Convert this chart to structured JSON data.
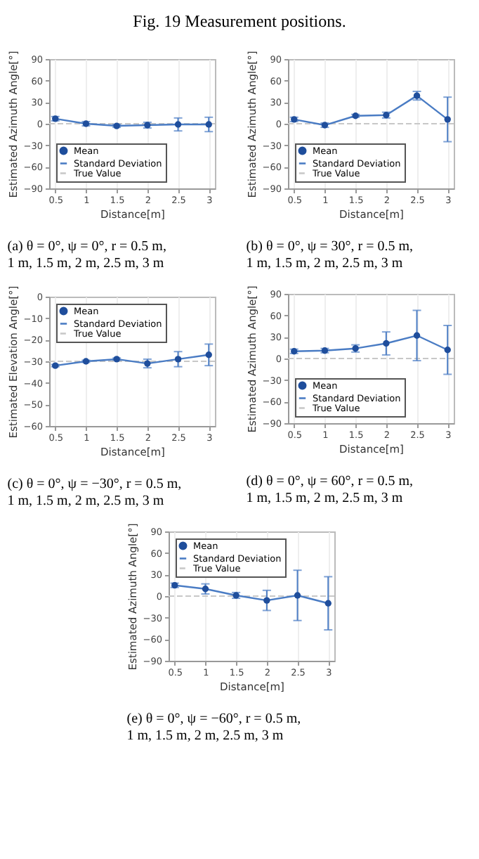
{
  "chart_data": [
    {
      "type": "line",
      "title": "(a) θ = 0°, ψ = 0°, r = 0.5 m, 1 m, 1.5 m, 2 m, 2.5 m, 3 m",
      "annotations": [
        "Fig. 19    Measurement positions."
      ],
      "xlabel": "Distance[m]",
      "ylabel": "Estimated Azimuth Angle[°]",
      "x": [
        0.5,
        1,
        1.5,
        2,
        2.5,
        3
      ],
      "xlim": [
        0.4,
        3.1
      ],
      "xticks": [
        0.5,
        1,
        1.5,
        2,
        2.5,
        3
      ],
      "ylim": [
        -90,
        90
      ],
      "yticks": [
        -90,
        -60,
        -30,
        0,
        30,
        60,
        90
      ],
      "grid": "x",
      "legend": "bottom left",
      "series": [
        {
          "name": "Mean",
          "type": "scatter",
          "marker": "circle",
          "color": "#1f4e9c",
          "values": [
            7,
            0,
            -3,
            -2,
            -1,
            -1
          ]
        },
        {
          "name": "Standard Deviation",
          "type": "line",
          "marker": "none",
          "color": "#4a7cc4",
          "values": [
            7,
            0,
            -3,
            -2,
            -1,
            -1
          ],
          "errors": [
            3,
            3,
            2,
            4,
            9,
            10
          ]
        }
      ],
      "ref_lines": [
        {
          "axis": "y",
          "value": 0,
          "label": "True Value",
          "color": "#c8c8c8",
          "line_style": "dashed"
        }
      ]
    },
    {
      "type": "line",
      "title": "(b) θ = 0°, ψ = 30°, r = 0.5 m, 1 m, 1.5 m, 2 m, 2.5 m, 3 m",
      "xlabel": "Distance[m]",
      "ylabel": "Estimated Azimuth Angle[°]",
      "x": [
        0.5,
        1,
        1.5,
        2,
        2.5,
        3
      ],
      "xlim": [
        0.4,
        3.1
      ],
      "xticks": [
        0.5,
        1,
        1.5,
        2,
        2.5,
        3
      ],
      "ylim": [
        -90,
        90
      ],
      "yticks": [
        -90,
        -60,
        -30,
        0,
        30,
        60,
        90
      ],
      "grid": "x",
      "legend": "bottom left",
      "series": [
        {
          "name": "Mean",
          "type": "scatter",
          "marker": "circle",
          "color": "#1f4e9c",
          "values": [
            6,
            -2,
            11,
            12,
            39,
            6
          ]
        },
        {
          "name": "Standard Deviation",
          "type": "line",
          "marker": "none",
          "color": "#4a7cc4",
          "values": [
            6,
            -2,
            11,
            12,
            39,
            6
          ],
          "errors": [
            3,
            3,
            2,
            4,
            6,
            31
          ]
        }
      ],
      "ref_lines": [
        {
          "axis": "y",
          "value": 0,
          "label": "True Value",
          "color": "#c8c8c8",
          "line_style": "dashed"
        }
      ]
    },
    {
      "type": "line",
      "title": "(c) θ = 0°, ψ = −30°, r = 0.5 m, 1 m, 1.5 m, 2 m, 2.5 m, 3 m",
      "xlabel": "Distance[m]",
      "ylabel": "Estimated Elevation Angle[°]",
      "x": [
        0.5,
        1,
        1.5,
        2,
        2.5,
        3
      ],
      "xlim": [
        0.4,
        3.1
      ],
      "xticks": [
        0.5,
        1,
        1.5,
        2,
        2.5,
        3
      ],
      "ylim": [
        -60,
        0
      ],
      "yticks": [
        -60,
        -50,
        -40,
        -30,
        -20,
        -10,
        0
      ],
      "grid": "x",
      "legend": "top left",
      "series": [
        {
          "name": "Mean",
          "type": "scatter",
          "marker": "circle",
          "color": "#1f4e9c",
          "values": [
            -32,
            -30,
            -29,
            -31,
            -29,
            -27
          ]
        },
        {
          "name": "Standard Deviation",
          "type": "line",
          "marker": "none",
          "color": "#4a7cc4",
          "values": [
            -32,
            -30,
            -29,
            -31,
            -29,
            -27
          ],
          "errors": [
            0.5,
            0.5,
            0.5,
            2,
            3.5,
            5
          ]
        }
      ],
      "ref_lines": [
        {
          "axis": "y",
          "value": -30,
          "label": "True Value",
          "color": "#c8c8c8",
          "line_style": "dashed"
        }
      ]
    },
    {
      "type": "line",
      "title": "(d) θ = 0°, ψ = 60°, r = 0.5 m, 1 m, 1.5 m, 2 m, 2.5 m, 3 m",
      "xlabel": "Distance[m]",
      "ylabel": "Estimated Azimuth Angle[°]",
      "x": [
        0.5,
        1,
        1.5,
        2,
        2.5,
        3
      ],
      "xlim": [
        0.4,
        3.1
      ],
      "xticks": [
        0.5,
        1,
        1.5,
        2,
        2.5,
        3
      ],
      "ylim": [
        -90,
        90
      ],
      "yticks": [
        -90,
        -60,
        -30,
        0,
        30,
        60,
        90
      ],
      "grid": "x",
      "legend": "bottom left",
      "series": [
        {
          "name": "Mean",
          "type": "scatter",
          "marker": "circle",
          "color": "#1f4e9c",
          "values": [
            10,
            11,
            14,
            21,
            32,
            12
          ]
        },
        {
          "name": "Standard Deviation",
          "type": "line",
          "marker": "none",
          "color": "#4a7cc4",
          "values": [
            10,
            11,
            14,
            21,
            32,
            12
          ],
          "errors": [
            3,
            3,
            5,
            16,
            35,
            34
          ]
        }
      ],
      "ref_lines": [
        {
          "axis": "y",
          "value": 0,
          "label": "True Value",
          "color": "#c8c8c8",
          "line_style": "dashed"
        }
      ]
    },
    {
      "type": "line",
      "title": "(e) θ = 0°, ψ = −60°, r = 0.5 m, 1 m, 1.5 m, 2 m, 2.5 m, 3 m",
      "xlabel": "Distance[m]",
      "ylabel": "Estimated Azimuth Angle[°]",
      "x": [
        0.5,
        1,
        1.5,
        2,
        2.5,
        3
      ],
      "xlim": [
        0.4,
        3.1
      ],
      "xticks": [
        0.5,
        1,
        1.5,
        2,
        2.5,
        3
      ],
      "ylim": [
        -90,
        90
      ],
      "yticks": [
        -90,
        -60,
        -30,
        0,
        30,
        60,
        90
      ],
      "grid": "x",
      "legend": "top left",
      "series": [
        {
          "name": "Mean",
          "type": "scatter",
          "marker": "circle",
          "color": "#1f4e9c",
          "values": [
            15,
            10,
            1,
            -6,
            1,
            -10
          ]
        },
        {
          "name": "Standard Deviation",
          "type": "line",
          "marker": "none",
          "color": "#4a7cc4",
          "values": [
            15,
            10,
            1,
            -6,
            1,
            -10
          ],
          "errors": [
            3,
            7,
            4,
            14,
            35,
            37
          ]
        }
      ],
      "ref_lines": [
        {
          "axis": "y",
          "value": 0,
          "label": "True Value",
          "color": "#c8c8c8",
          "line_style": "dashed"
        }
      ]
    }
  ]
}
